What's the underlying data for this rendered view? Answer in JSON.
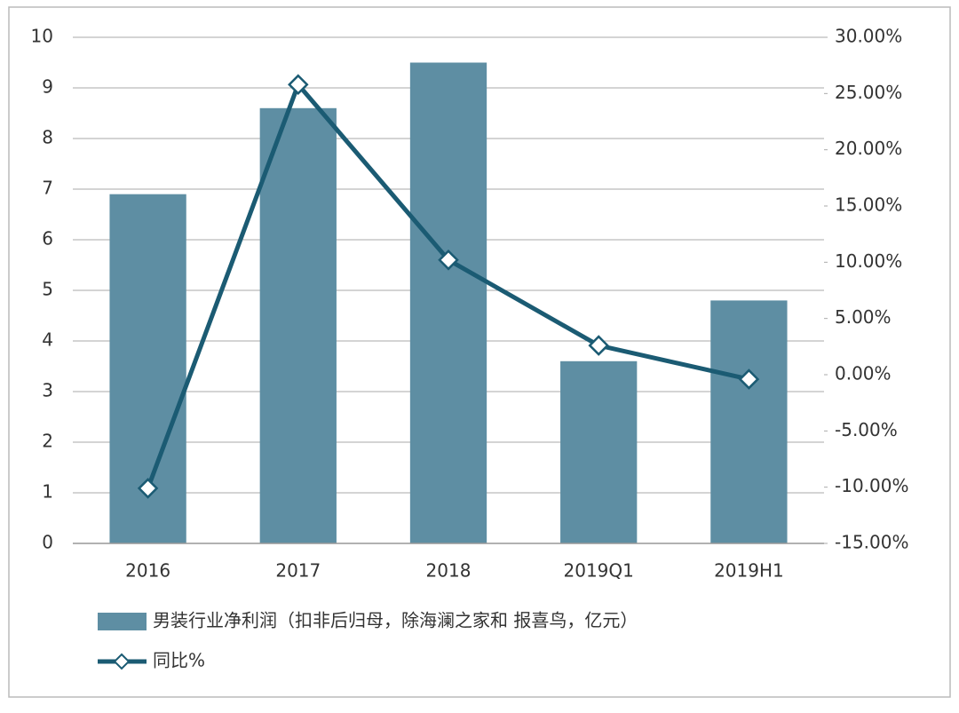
{
  "chart_data": {
    "type": "bar_line",
    "categories": [
      "2016",
      "2017",
      "2018",
      "2019Q1",
      "2019H1"
    ],
    "series": [
      {
        "name": "男装行业净利润（扣非后归母，除海澜之家和 报喜鸟，亿元）",
        "type": "bar",
        "color": "#5e8ea3",
        "values": [
          6.9,
          8.6,
          9.5,
          3.6,
          4.8
        ]
      },
      {
        "name": "同比%",
        "type": "line",
        "axis": "y2",
        "color": "#1b5b73",
        "values": [
          -10.1,
          25.8,
          10.2,
          2.6,
          -0.4
        ]
      }
    ],
    "ylim": [
      0,
      10
    ],
    "yticks": [
      0,
      1,
      2,
      3,
      4,
      5,
      6,
      7,
      8,
      9,
      10
    ],
    "y2lim": [
      -15,
      30
    ],
    "y2ticks": [
      {
        "value": -15,
        "label": "-15.00%"
      },
      {
        "value": -10,
        "label": "-10.00%"
      },
      {
        "value": -5,
        "label": "-5.00%"
      },
      {
        "value": 0,
        "label": "0.00%"
      },
      {
        "value": 5,
        "label": "5.00%"
      },
      {
        "value": 10,
        "label": "10.00%"
      },
      {
        "value": 15,
        "label": "15.00%"
      },
      {
        "value": 20,
        "label": "20.00%"
      },
      {
        "value": 25,
        "label": "25.00%"
      },
      {
        "value": 30,
        "label": "30.00%"
      }
    ],
    "grid": true,
    "legend": "bottom"
  }
}
